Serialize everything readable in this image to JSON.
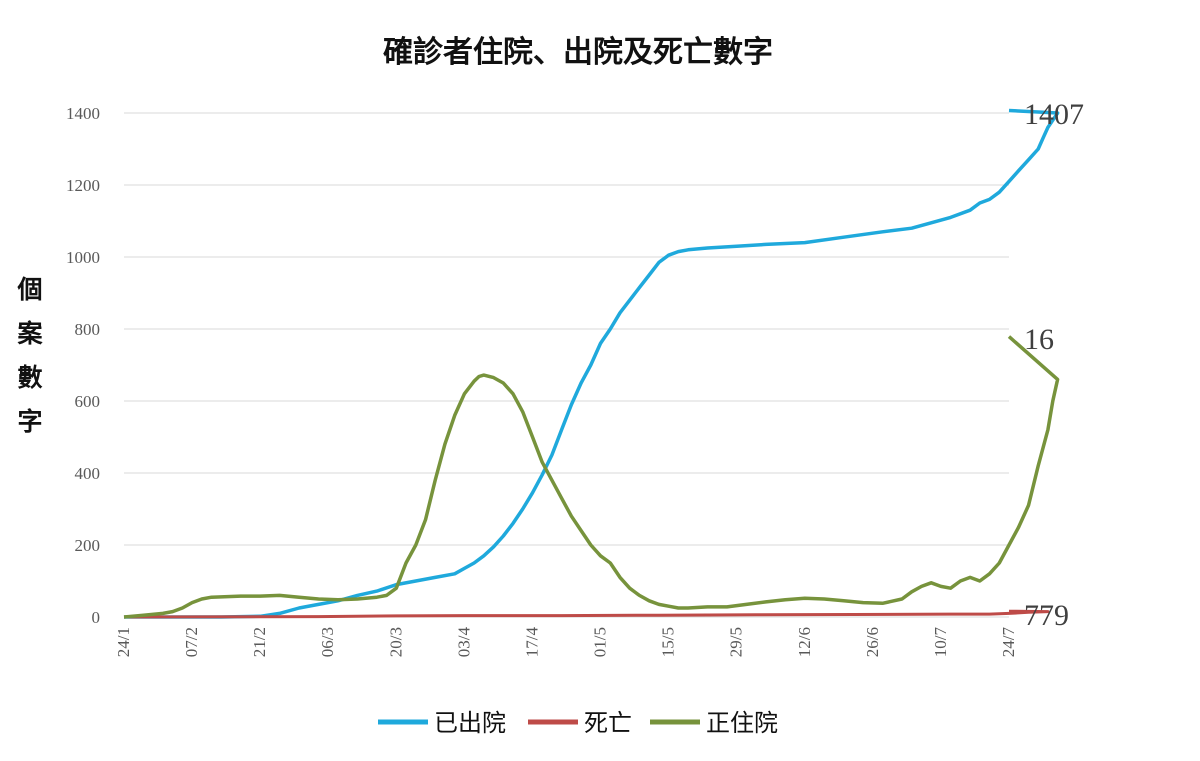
{
  "chart_data": {
    "type": "line",
    "title": "確診者住院、出院及死亡數字",
    "ylabel_chars": [
      "個",
      "案",
      "數",
      "字"
    ],
    "xlabel": "",
    "ylim": [
      0,
      1400
    ],
    "yticks": [
      0,
      200,
      400,
      600,
      800,
      1000,
      1200,
      1400
    ],
    "categories": [
      "24/1",
      "07/2",
      "21/2",
      "06/3",
      "20/3",
      "03/4",
      "17/4",
      "01/5",
      "15/5",
      "29/5",
      "12/6",
      "26/6",
      "10/7",
      "24/7"
    ],
    "grid": true,
    "legend_position": "bottom",
    "series": [
      {
        "name": "已出院",
        "color": "#1fa9dc",
        "end_label": "1407",
        "points": [
          [
            0,
            0
          ],
          [
            20,
            0
          ],
          [
            28,
            2
          ],
          [
            32,
            10
          ],
          [
            36,
            25
          ],
          [
            40,
            35
          ],
          [
            44,
            45
          ],
          [
            48,
            60
          ],
          [
            52,
            72
          ],
          [
            56,
            90
          ],
          [
            60,
            100
          ],
          [
            64,
            110
          ],
          [
            68,
            120
          ],
          [
            70,
            135
          ],
          [
            72,
            150
          ],
          [
            74,
            170
          ],
          [
            76,
            195
          ],
          [
            78,
            225
          ],
          [
            80,
            260
          ],
          [
            82,
            300
          ],
          [
            84,
            345
          ],
          [
            86,
            395
          ],
          [
            88,
            450
          ],
          [
            90,
            520
          ],
          [
            92,
            590
          ],
          [
            94,
            650
          ],
          [
            96,
            700
          ],
          [
            98,
            760
          ],
          [
            100,
            800
          ],
          [
            102,
            845
          ],
          [
            104,
            880
          ],
          [
            106,
            915
          ],
          [
            108,
            950
          ],
          [
            110,
            985
          ],
          [
            112,
            1005
          ],
          [
            114,
            1015
          ],
          [
            116,
            1020
          ],
          [
            120,
            1025
          ],
          [
            126,
            1030
          ],
          [
            132,
            1035
          ],
          [
            140,
            1040
          ],
          [
            148,
            1055
          ],
          [
            156,
            1070
          ],
          [
            162,
            1080
          ],
          [
            166,
            1095
          ],
          [
            170,
            1110
          ],
          [
            174,
            1130
          ],
          [
            176,
            1150
          ],
          [
            178,
            1160
          ],
          [
            180,
            1180
          ],
          [
            182,
            1210
          ],
          [
            184,
            1240
          ],
          [
            186,
            1270
          ],
          [
            188,
            1300
          ],
          [
            189,
            1330
          ],
          [
            190,
            1360
          ],
          [
            191,
            1380
          ],
          [
            192,
            1400
          ],
          [
            182,
            1407
          ]
        ]
      },
      {
        "name": "死亡",
        "color": "#be4b48",
        "end_label": "16",
        "points": [
          [
            0,
            0
          ],
          [
            40,
            1
          ],
          [
            56,
            3
          ],
          [
            70,
            4
          ],
          [
            90,
            4
          ],
          [
            110,
            5
          ],
          [
            130,
            6
          ],
          [
            150,
            7
          ],
          [
            170,
            8
          ],
          [
            178,
            8
          ],
          [
            182,
            10
          ],
          [
            186,
            13
          ],
          [
            190,
            15
          ],
          [
            182,
            16
          ]
        ]
      },
      {
        "name": "正住院",
        "color": "#77933c",
        "end_label": "779",
        "points": [
          [
            0,
            0
          ],
          [
            4,
            5
          ],
          [
            8,
            10
          ],
          [
            10,
            15
          ],
          [
            12,
            25
          ],
          [
            14,
            40
          ],
          [
            16,
            50
          ],
          [
            18,
            55
          ],
          [
            24,
            58
          ],
          [
            28,
            58
          ],
          [
            32,
            60
          ],
          [
            36,
            55
          ],
          [
            40,
            50
          ],
          [
            44,
            48
          ],
          [
            48,
            50
          ],
          [
            52,
            55
          ],
          [
            54,
            60
          ],
          [
            56,
            80
          ],
          [
            58,
            150
          ],
          [
            60,
            200
          ],
          [
            62,
            270
          ],
          [
            64,
            380
          ],
          [
            66,
            480
          ],
          [
            68,
            560
          ],
          [
            70,
            620
          ],
          [
            72,
            655
          ],
          [
            73,
            668
          ],
          [
            74,
            672
          ],
          [
            76,
            665
          ],
          [
            78,
            650
          ],
          [
            80,
            620
          ],
          [
            82,
            570
          ],
          [
            84,
            500
          ],
          [
            86,
            430
          ],
          [
            88,
            380
          ],
          [
            90,
            330
          ],
          [
            92,
            280
          ],
          [
            94,
            240
          ],
          [
            96,
            200
          ],
          [
            98,
            170
          ],
          [
            100,
            150
          ],
          [
            102,
            110
          ],
          [
            104,
            80
          ],
          [
            106,
            60
          ],
          [
            108,
            45
          ],
          [
            110,
            35
          ],
          [
            112,
            30
          ],
          [
            114,
            25
          ],
          [
            116,
            25
          ],
          [
            120,
            28
          ],
          [
            124,
            28
          ],
          [
            128,
            35
          ],
          [
            132,
            42
          ],
          [
            136,
            48
          ],
          [
            140,
            52
          ],
          [
            144,
            50
          ],
          [
            148,
            45
          ],
          [
            152,
            40
          ],
          [
            156,
            38
          ],
          [
            160,
            50
          ],
          [
            162,
            70
          ],
          [
            164,
            85
          ],
          [
            166,
            95
          ],
          [
            168,
            85
          ],
          [
            170,
            80
          ],
          [
            172,
            100
          ],
          [
            174,
            110
          ],
          [
            176,
            100
          ],
          [
            178,
            120
          ],
          [
            180,
            150
          ],
          [
            182,
            200
          ],
          [
            184,
            250
          ],
          [
            186,
            310
          ],
          [
            188,
            420
          ],
          [
            190,
            520
          ],
          [
            191,
            600
          ],
          [
            192,
            660
          ],
          [
            182,
            779
          ]
        ]
      }
    ]
  }
}
